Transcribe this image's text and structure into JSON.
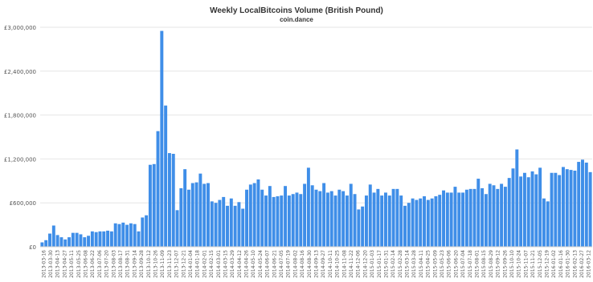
{
  "chart_data": {
    "type": "bar",
    "title": "Weekly LocalBitcoins Volume (British Pound)",
    "subtitle": "coin.dance",
    "xlabel": "",
    "ylabel": "",
    "ylim": [
      0,
      3000000
    ],
    "y_ticks": [
      0,
      600000,
      1200000,
      1800000,
      2400000,
      3000000
    ],
    "y_tick_labels": [
      "£0",
      "£600,000",
      "£1,200,000",
      "£1,800,000",
      "£2,400,000",
      "£3,000,000"
    ],
    "grid": true,
    "legend": "none",
    "x_tick_labels": [
      "2013-03-16",
      "2013-03-30",
      "2013-04-13",
      "2013-04-27",
      "2013-05-11",
      "2013-05-25",
      "2013-06-08",
      "2013-06-22",
      "2013-07-06",
      "2013-07-20",
      "2013-08-03",
      "2013-08-17",
      "2013-08-31",
      "2013-09-14",
      "2013-09-28",
      "2013-10-12",
      "2013-10-26",
      "2013-11-09",
      "2013-11-23",
      "2013-12-07",
      "2013-12-21",
      "2014-01-04",
      "2014-01-18",
      "2014-02-01",
      "2014-02-15",
      "2014-03-01",
      "2014-03-15",
      "2014-03-29",
      "2014-04-12",
      "2014-04-26",
      "2014-05-10",
      "2014-05-24",
      "2014-06-07",
      "2014-06-21",
      "2014-07-05",
      "2014-07-19",
      "2014-08-02",
      "2014-08-16",
      "2014-08-30",
      "2014-09-13",
      "2014-09-27",
      "2014-10-11",
      "2014-10-25",
      "2014-11-08",
      "2014-11-22",
      "2014-12-06",
      "2014-12-20",
      "2015-01-03",
      "2015-01-17",
      "2015-01-31",
      "2015-02-14",
      "2015-02-28",
      "2015-03-14",
      "2015-03-28",
      "2015-04-11",
      "2015-04-25",
      "2015-05-09",
      "2015-05-23",
      "2015-06-06",
      "2015-06-20",
      "2015-07-04",
      "2015-07-18",
      "2015-08-01",
      "2015-08-15",
      "2015-08-29",
      "2015-09-12",
      "2015-09-26",
      "2015-10-10",
      "2015-10-24",
      "2015-11-07",
      "2015-11-21",
      "2015-12-05",
      "2015-12-19",
      "2016-01-02",
      "2016-01-16",
      "2016-01-30",
      "2016-02-13",
      "2016-02-27",
      "2016-03-12"
    ],
    "values": [
      60000,
      90000,
      180000,
      290000,
      160000,
      130000,
      100000,
      130000,
      190000,
      190000,
      170000,
      130000,
      150000,
      210000,
      200000,
      210000,
      210000,
      220000,
      210000,
      320000,
      310000,
      330000,
      300000,
      320000,
      310000,
      210000,
      400000,
      430000,
      1120000,
      1130000,
      1580000,
      2950000,
      1930000,
      1280000,
      1270000,
      500000,
      800000,
      1060000,
      780000,
      870000,
      880000,
      1000000,
      860000,
      870000,
      620000,
      600000,
      640000,
      680000,
      560000,
      660000,
      560000,
      610000,
      520000,
      780000,
      850000,
      870000,
      920000,
      780000,
      700000,
      830000,
      680000,
      690000,
      700000,
      830000,
      700000,
      720000,
      740000,
      720000,
      860000,
      1080000,
      840000,
      780000,
      760000,
      870000,
      740000,
      760000,
      700000,
      780000,
      760000,
      700000,
      860000,
      720000,
      510000,
      550000,
      700000,
      850000,
      740000,
      790000,
      700000,
      740000,
      700000,
      790000,
      790000,
      700000,
      560000,
      600000,
      660000,
      640000,
      660000,
      690000,
      640000,
      660000,
      690000,
      710000,
      770000,
      740000,
      740000,
      820000,
      740000,
      740000,
      780000,
      790000,
      790000,
      930000,
      800000,
      720000,
      860000,
      840000,
      790000,
      860000,
      820000,
      940000,
      1070000,
      1330000,
      960000,
      1010000,
      950000,
      1030000,
      990000,
      1080000,
      660000,
      620000,
      1010000,
      1010000,
      980000,
      1090000,
      1060000,
      1050000,
      1040000,
      1160000,
      1190000,
      1150000,
      1020000
    ]
  }
}
